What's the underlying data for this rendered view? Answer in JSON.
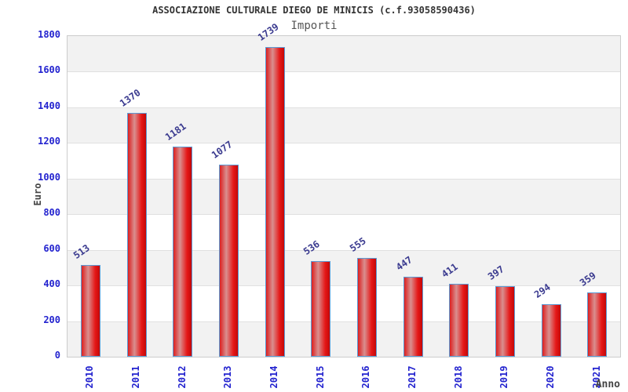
{
  "header": {
    "title": "ASSOCIAZIONE CULTURALE DIEGO DE MINICIS (c.f.93058590436)",
    "subtitle": "Importi"
  },
  "chart_data": {
    "type": "bar",
    "title": "ASSOCIAZIONE CULTURALE DIEGO DE MINICIS (c.f.93058590436)",
    "subtitle": "Importi",
    "xlabel": "Anno",
    "ylabel": "Euro",
    "categories": [
      "2010",
      "2011",
      "2012",
      "2013",
      "2014",
      "2015",
      "2016",
      "2017",
      "2018",
      "2019",
      "2020",
      "2021"
    ],
    "values": [
      513,
      1370,
      1181,
      1077,
      1739,
      536,
      555,
      447,
      411,
      397,
      294,
      359
    ],
    "ylim": [
      0,
      1800
    ],
    "ytick_step": 200,
    "legend": "none",
    "grid": "horizontal-bands",
    "colors": {
      "bar_gradient": [
        "#dc1f1f",
        "#d98f8f",
        "#e51818",
        "#c40808"
      ],
      "bar_border": "#5b9bd5",
      "axis_tick_label": "#2323cf",
      "value_label": "#3a3a8f",
      "title": "#333333",
      "subtitle": "#555555",
      "axis_title": "#444444",
      "band": "#f2f2f2",
      "gridline": "#e0e0e0",
      "plot_border": "#cccccc",
      "background": "#ffffff"
    }
  }
}
